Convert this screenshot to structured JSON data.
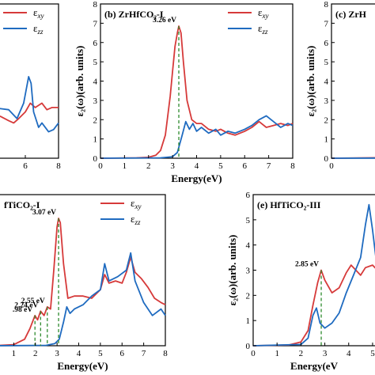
{
  "chart_data": [
    {
      "type": "line",
      "panel_label": "",
      "title": "",
      "xlabel": "",
      "ylabel": "",
      "xlim": [
        4,
        8
      ],
      "ylim": [
        0,
        7
      ],
      "xticks": [
        6,
        8
      ],
      "yticks": [],
      "legend": {
        "placement": "top-left",
        "entries": [
          "εxy",
          "εzz"
        ]
      },
      "series": [
        {
          "name": "εxy",
          "color": "#d63a3a",
          "x": [
            4.0,
            4.5,
            5.0,
            5.3,
            5.6,
            6.0,
            6.3,
            6.6,
            7.0,
            7.3,
            7.6,
            8.0
          ],
          "y": [
            2.0,
            1.9,
            1.7,
            1.6,
            1.8,
            2.1,
            2.5,
            2.3,
            2.5,
            2.2,
            2.3,
            2.3
          ]
        },
        {
          "name": "εzz",
          "color": "#1f6bc0",
          "x": [
            4.0,
            5.0,
            5.5,
            5.9,
            6.2,
            6.35,
            6.5,
            6.8,
            7.0,
            7.4,
            7.7,
            8.0
          ],
          "y": [
            2.3,
            2.2,
            1.8,
            2.5,
            3.7,
            3.4,
            2.1,
            1.4,
            1.6,
            1.2,
            1.3,
            1.6
          ]
        }
      ],
      "annotations": []
    },
    {
      "type": "line",
      "panel_label": "(b) ZrHfCO₂-I",
      "title": "",
      "xlabel": "Energy(eV)",
      "ylabel": "ε₂(ω)(arb. units)",
      "xlim": [
        0,
        8
      ],
      "ylim": [
        0,
        8
      ],
      "xticks": [
        0,
        1,
        2,
        3,
        4,
        5,
        6,
        7,
        8
      ],
      "yticks": [
        0,
        1,
        2,
        3,
        4,
        5,
        6,
        7,
        8
      ],
      "legend": {
        "placement": "top-right",
        "entries": [
          "εxy",
          "εzz"
        ]
      },
      "series": [
        {
          "name": "εxy",
          "color": "#d63a3a",
          "x": [
            0,
            1.5,
            2.0,
            2.3,
            2.5,
            2.7,
            2.9,
            3.0,
            3.1,
            3.2,
            3.26,
            3.35,
            3.45,
            3.6,
            3.8,
            4.0,
            4.2,
            4.5,
            4.8,
            5.0,
            5.3,
            5.6,
            6.0,
            6.3,
            6.6,
            6.9,
            7.2,
            7.5,
            7.8,
            8.0
          ],
          "y": [
            0,
            0.02,
            0.05,
            0.15,
            0.4,
            1.2,
            3.2,
            4.5,
            5.8,
            6.5,
            6.85,
            6.5,
            5.0,
            3.0,
            2.0,
            1.8,
            1.8,
            1.5,
            1.4,
            1.5,
            1.3,
            1.2,
            1.4,
            1.6,
            1.9,
            1.6,
            1.7,
            1.8,
            1.7,
            1.8
          ]
        },
        {
          "name": "εzz",
          "color": "#1f6bc0",
          "x": [
            0,
            2.5,
            3.0,
            3.2,
            3.4,
            3.55,
            3.7,
            3.85,
            4.0,
            4.2,
            4.5,
            4.8,
            5.0,
            5.3,
            5.6,
            6.0,
            6.3,
            6.6,
            6.9,
            7.2,
            7.5,
            7.8,
            8.0
          ],
          "y": [
            0,
            0.02,
            0.08,
            0.3,
            1.2,
            1.9,
            1.5,
            1.8,
            1.4,
            1.6,
            1.3,
            1.5,
            1.2,
            1.4,
            1.3,
            1.5,
            1.7,
            2.0,
            2.2,
            1.9,
            1.6,
            1.8,
            1.7
          ]
        }
      ],
      "annotations": [
        {
          "text": "3.26 eV",
          "x": 3.26,
          "y": 6.85,
          "dashed_to_zero": true
        }
      ]
    },
    {
      "type": "line",
      "panel_label": "(c) ZrH",
      "title": "",
      "xlabel": "",
      "ylabel": "ε₂(ω)(arb. units)",
      "xlim": [
        0,
        0.5
      ],
      "ylim": [
        0,
        8
      ],
      "xticks": [
        0
      ],
      "yticks": [
        0,
        1,
        2,
        3,
        4,
        5,
        6,
        7,
        8
      ],
      "legend": null,
      "series": [
        {
          "name": "εxy",
          "color": "#d63a3a",
          "x": [
            0,
            0.5
          ],
          "y": [
            0,
            0.03
          ]
        },
        {
          "name": "εzz",
          "color": "#1f6bc0",
          "x": [
            0,
            0.5
          ],
          "y": [
            0,
            0.01
          ]
        }
      ],
      "annotations": []
    },
    {
      "type": "line",
      "panel_label": "fTiCO₂-I",
      "title": "",
      "xlabel": "Energy(eV)",
      "ylabel": "",
      "xlim": [
        0,
        8
      ],
      "ylim": [
        0,
        7
      ],
      "xticks": [
        0,
        1,
        2,
        3,
        4,
        5,
        6,
        7,
        8
      ],
      "yticks": [],
      "legend": {
        "placement": "top-right",
        "entries": [
          "εxy",
          "εzz"
        ]
      },
      "series": [
        {
          "name": "εxy",
          "color": "#d63a3a",
          "x": [
            0,
            1.0,
            1.5,
            1.75,
            1.98,
            2.1,
            2.24,
            2.4,
            2.55,
            2.7,
            2.85,
            3.0,
            3.07,
            3.15,
            3.3,
            3.5,
            3.8,
            4.2,
            4.6,
            5.0,
            5.2,
            5.4,
            5.7,
            6.0,
            6.2,
            6.4,
            6.6,
            6.9,
            7.2,
            7.5,
            7.8,
            8.0
          ],
          "y": [
            0,
            0.05,
            0.3,
            0.8,
            1.4,
            1.2,
            1.6,
            1.4,
            1.8,
            1.7,
            3.5,
            5.5,
            5.9,
            5.7,
            3.8,
            2.2,
            2.3,
            2.3,
            2.2,
            2.6,
            3.3,
            2.9,
            3.0,
            2.9,
            3.4,
            4.1,
            3.4,
            3.1,
            2.7,
            2.2,
            2.0,
            1.9
          ]
        },
        {
          "name": "εzz",
          "color": "#1f6bc0",
          "x": [
            0,
            2.5,
            2.9,
            3.1,
            3.3,
            3.45,
            3.6,
            3.8,
            4.2,
            4.6,
            5.0,
            5.2,
            5.4,
            5.8,
            6.2,
            6.4,
            6.6,
            7.0,
            7.4,
            7.8,
            8.0
          ],
          "y": [
            0,
            0.02,
            0.1,
            0.3,
            1.1,
            1.8,
            1.5,
            1.7,
            1.9,
            2.3,
            2.6,
            3.8,
            3.0,
            3.2,
            3.5,
            4.3,
            3.0,
            2.0,
            1.4,
            1.7,
            1.4
          ]
        }
      ],
      "annotations": [
        {
          "text": ".98 eV",
          "x": 1.98,
          "y": 1.4,
          "dashed_to_zero": true
        },
        {
          "text": "2.24 eV",
          "x": 2.24,
          "y": 1.6,
          "dashed_to_zero": true
        },
        {
          "text": "2.55 eV",
          "x": 2.55,
          "y": 1.8,
          "dashed_to_zero": true
        },
        {
          "text": "3.07 eV",
          "x": 3.07,
          "y": 5.9,
          "dashed_to_zero": true
        }
      ]
    },
    {
      "type": "line",
      "panel_label": "(e) HfTiCO₂-III",
      "title": "",
      "xlabel": "Energy(eV",
      "ylabel": "ε₂(ω)(arb. units)",
      "xlim": [
        0,
        5.3
      ],
      "ylim": [
        0,
        6
      ],
      "xticks": [
        0,
        1,
        2,
        3,
        4,
        5
      ],
      "yticks": [
        0,
        1,
        2,
        3,
        4,
        5,
        6
      ],
      "legend": null,
      "series": [
        {
          "name": "εxy",
          "color": "#d63a3a",
          "x": [
            0,
            1.5,
            2.0,
            2.3,
            2.5,
            2.7,
            2.85,
            3.0,
            3.3,
            3.6,
            3.9,
            4.1,
            4.3,
            4.5,
            4.7,
            5.0,
            5.3
          ],
          "y": [
            0,
            0.03,
            0.15,
            0.6,
            1.6,
            2.5,
            3.0,
            2.6,
            2.1,
            2.3,
            2.9,
            3.2,
            3.0,
            2.8,
            3.1,
            3.2,
            2.9
          ]
        },
        {
          "name": "εzz",
          "color": "#1f6bc0",
          "x": [
            0,
            2.0,
            2.3,
            2.5,
            2.65,
            2.8,
            3.0,
            3.3,
            3.6,
            3.9,
            4.2,
            4.5,
            4.7,
            4.85,
            5.0,
            5.15,
            5.3
          ],
          "y": [
            0,
            0.05,
            0.3,
            1.2,
            1.5,
            0.9,
            0.7,
            0.9,
            1.3,
            2.1,
            2.8,
            3.5,
            4.8,
            5.6,
            4.6,
            3.4,
            3.0
          ]
        }
      ],
      "annotations": [
        {
          "text": "2.85 eV",
          "x": 2.85,
          "y": 3.0,
          "dashed_to_zero": true
        }
      ]
    }
  ]
}
